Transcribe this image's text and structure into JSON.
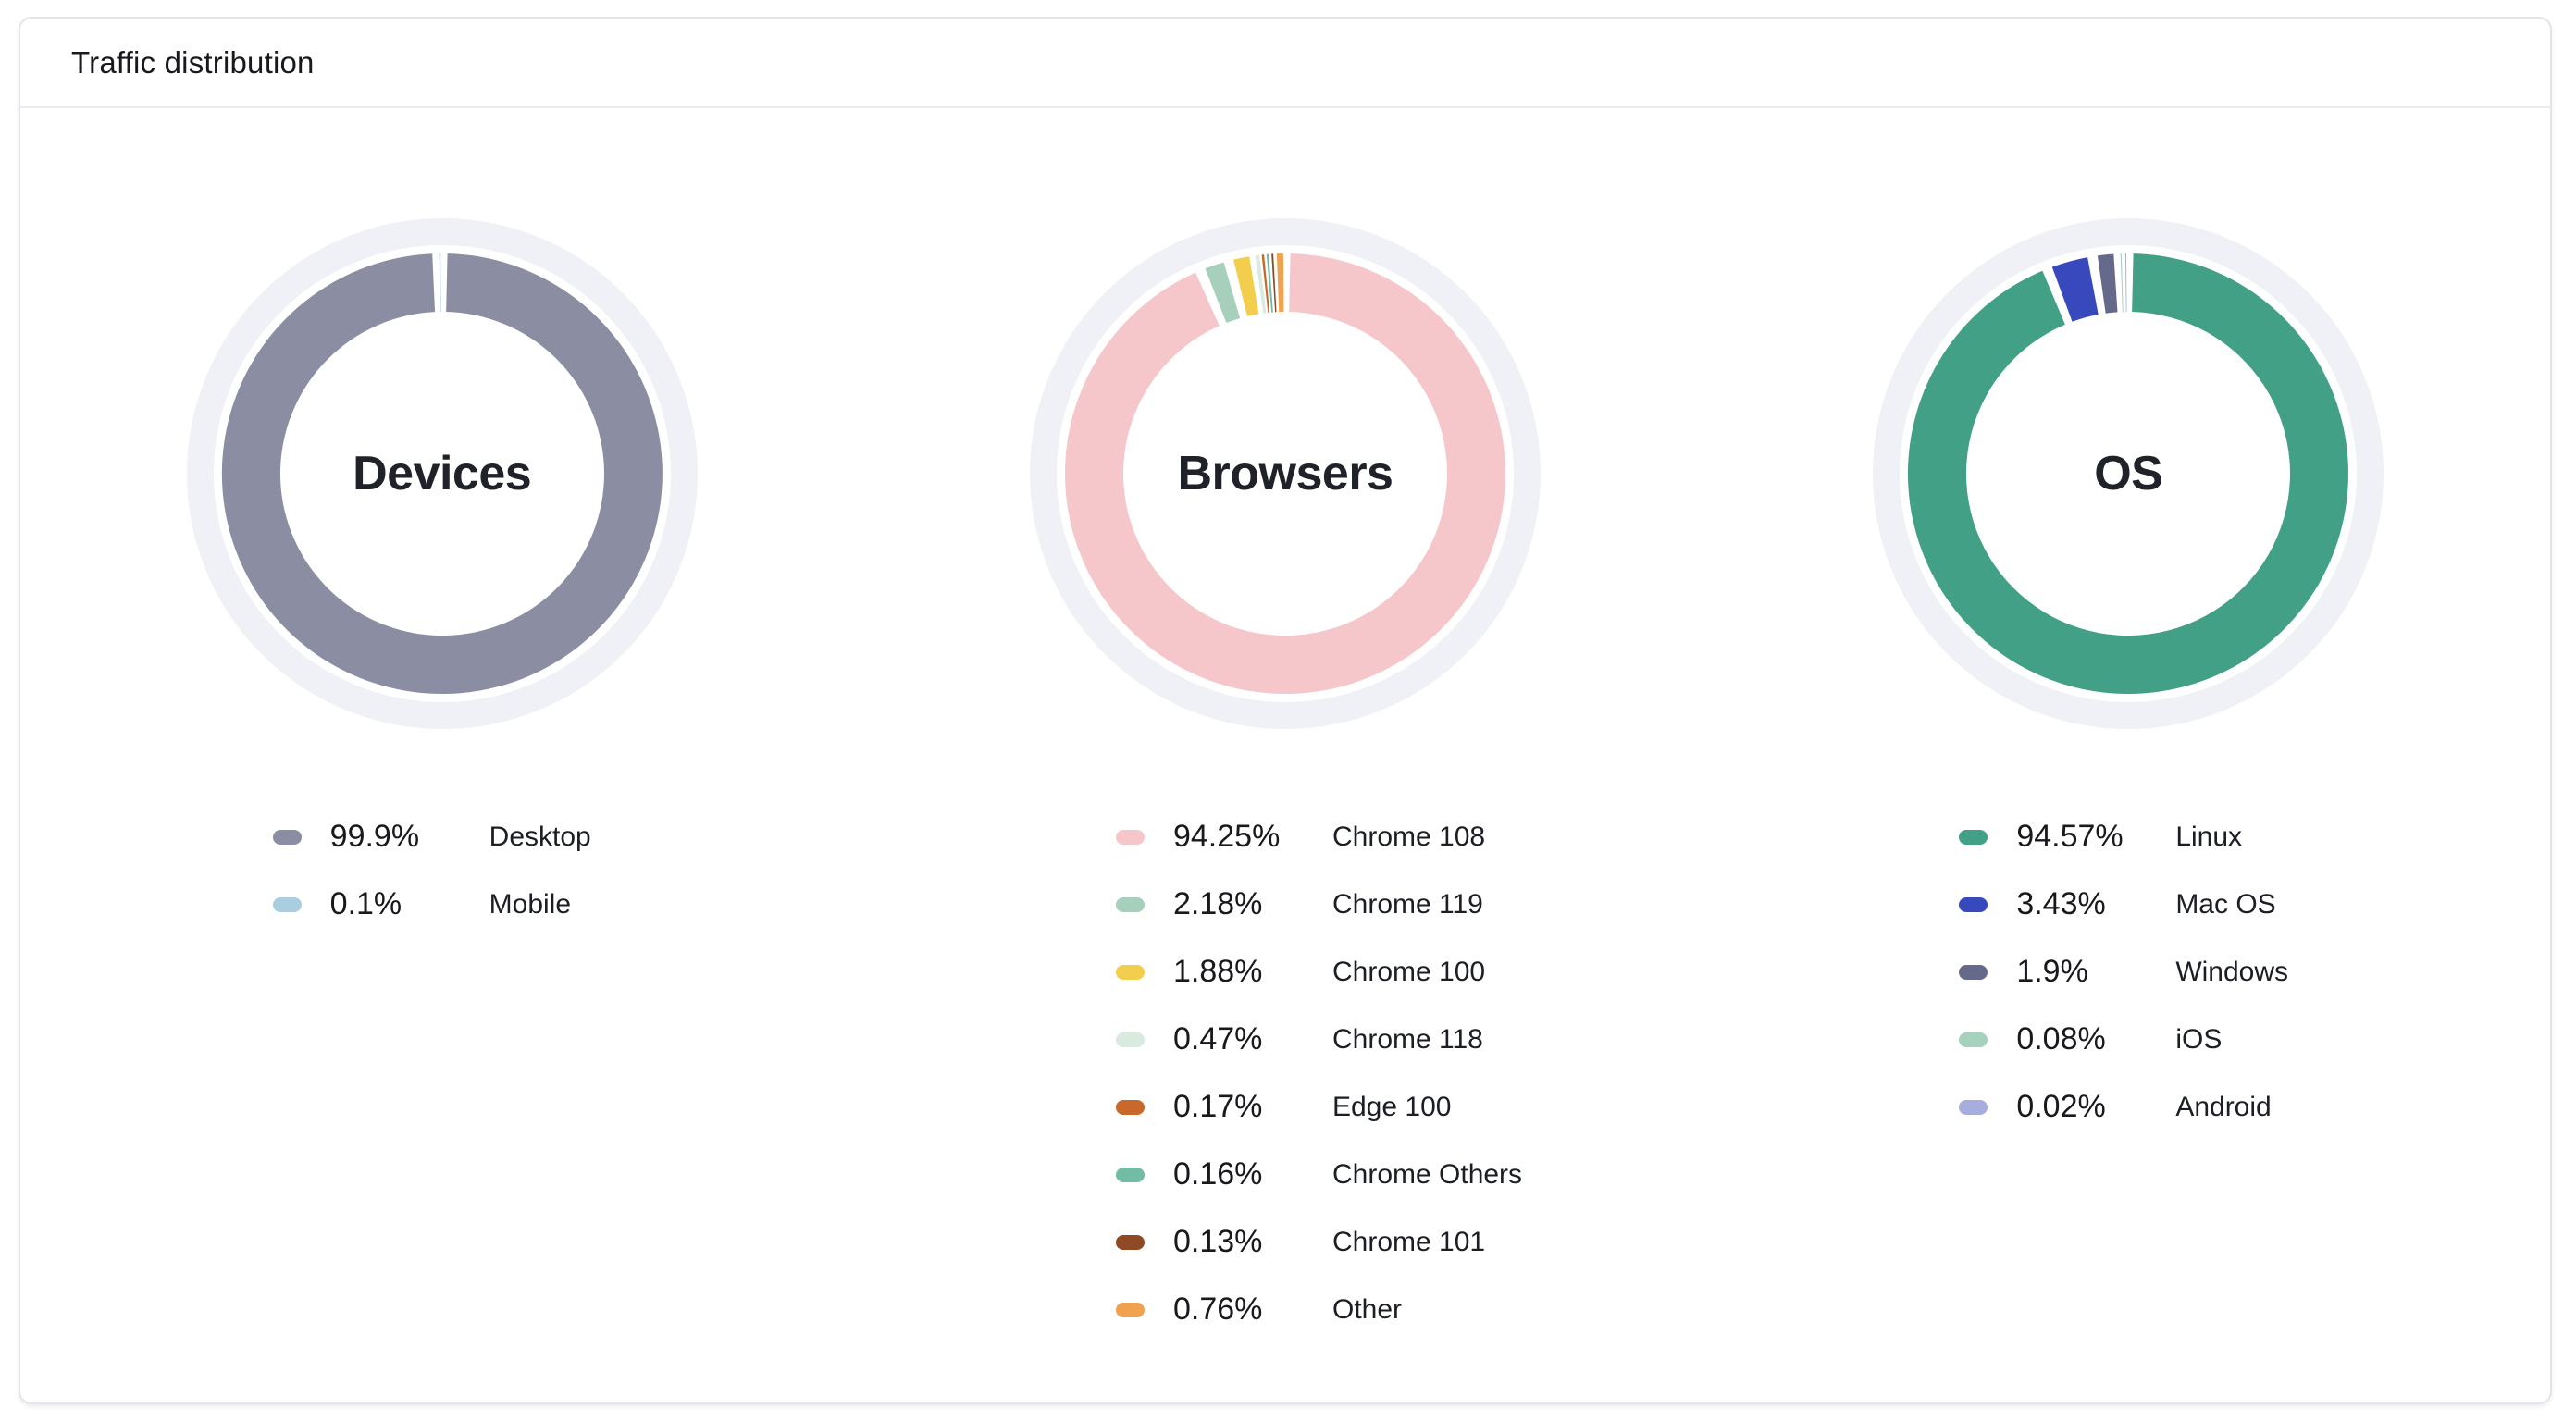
{
  "card": {
    "title": "Traffic distribution"
  },
  "donut_style": {
    "track_color": "#F0F1F6",
    "inner_radius": 175,
    "outer_radius": 238,
    "track_mid_radius": 261.5,
    "track_width": 29
  },
  "chart_data": [
    {
      "type": "pie",
      "title": "Devices",
      "legend_position": "bottom",
      "slices": [
        {
          "label": "Desktop",
          "value": 99.9,
          "value_text": "99.9%",
          "color": "#8B8DA3"
        },
        {
          "label": "Mobile",
          "value": 0.1,
          "value_text": "0.1%",
          "color": "#A9CEE0"
        }
      ]
    },
    {
      "type": "pie",
      "title": "Browsers",
      "legend_position": "bottom",
      "slices": [
        {
          "label": "Chrome 108",
          "value": 94.25,
          "value_text": "94.25%",
          "color": "#F5C7CA"
        },
        {
          "label": "Chrome 119",
          "value": 2.18,
          "value_text": "2.18%",
          "color": "#A7D0BC"
        },
        {
          "label": "Chrome 100",
          "value": 1.88,
          "value_text": "1.88%",
          "color": "#F3CE4C"
        },
        {
          "label": "Chrome 118",
          "value": 0.47,
          "value_text": "0.47%",
          "color": "#D9EAE0"
        },
        {
          "label": "Edge 100",
          "value": 0.17,
          "value_text": "0.17%",
          "color": "#C8692B"
        },
        {
          "label": "Chrome Others",
          "value": 0.16,
          "value_text": "0.16%",
          "color": "#72BCA5"
        },
        {
          "label": "Chrome 101",
          "value": 0.13,
          "value_text": "0.13%",
          "color": "#8E4A24"
        },
        {
          "label": "Other",
          "value": 0.76,
          "value_text": "0.76%",
          "color": "#F0A24E"
        }
      ]
    },
    {
      "type": "pie",
      "title": "OS",
      "legend_position": "bottom",
      "slices": [
        {
          "label": "Linux",
          "value": 94.57,
          "value_text": "94.57%",
          "color": "#42A086"
        },
        {
          "label": "Mac OS",
          "value": 3.43,
          "value_text": "3.43%",
          "color": "#3849BE"
        },
        {
          "label": "Windows",
          "value": 1.9,
          "value_text": "1.9%",
          "color": "#656A8B"
        },
        {
          "label": "iOS",
          "value": 0.08,
          "value_text": "0.08%",
          "color": "#A5D1BD"
        },
        {
          "label": "Android",
          "value": 0.02,
          "value_text": "0.02%",
          "color": "#A7AEDD"
        }
      ]
    }
  ]
}
